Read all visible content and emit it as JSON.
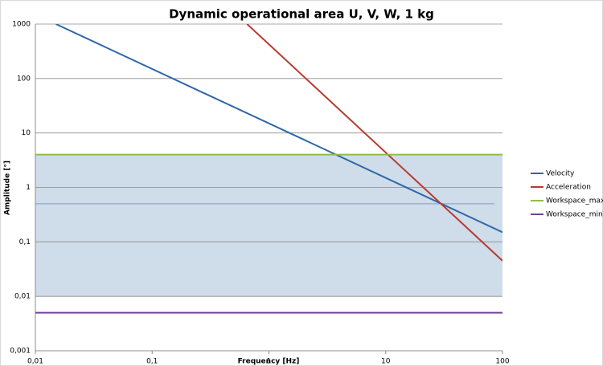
{
  "chart_data": {
    "type": "line",
    "title": "Dynamic operational area U, V, W, 1 kg",
    "x_label": "Frequency [Hz]",
    "y_label": "Amplitude [°]",
    "xscale": "log",
    "yscale": "log",
    "xlim": [
      0.01,
      100
    ],
    "ylim": [
      0.001,
      1000
    ],
    "xticks": [
      {
        "value": 0.01,
        "label": "0,01"
      },
      {
        "value": 0.1,
        "label": "0,1"
      },
      1,
      10,
      100
    ],
    "yticks": [
      {
        "value": 0.001,
        "label": "0,001"
      },
      {
        "value": 0.01,
        "label": "0,01"
      },
      {
        "value": 0.1,
        "label": "0,1"
      },
      1,
      10,
      100,
      1000
    ],
    "grid": true,
    "legend": "right",
    "shaded_area": {
      "color": "#cfdcea",
      "x": [
        0.01,
        100
      ],
      "y": [
        0.01,
        4
      ]
    },
    "reference_line": {
      "color": "#7f9cbf",
      "x": [
        0.01,
        85
      ],
      "y": [
        0.5,
        0.5
      ]
    },
    "series": [
      {
        "name": "Velocity",
        "color": "#2e67a8",
        "x": [
          0.015,
          100
        ],
        "values": [
          1000,
          0.15
        ]
      },
      {
        "name": "Acceleration",
        "color": "#b83a2e",
        "x": [
          0.65,
          100
        ],
        "values": [
          1000,
          0.045
        ]
      },
      {
        "name": "Workspace_max",
        "color": "#8dc03f",
        "x": [
          0.01,
          100
        ],
        "values": [
          4,
          4
        ]
      },
      {
        "name": "Workspace_min",
        "color": "#7342a0",
        "x": [
          0.01,
          100
        ],
        "values": [
          0.005,
          0.005
        ]
      }
    ]
  }
}
